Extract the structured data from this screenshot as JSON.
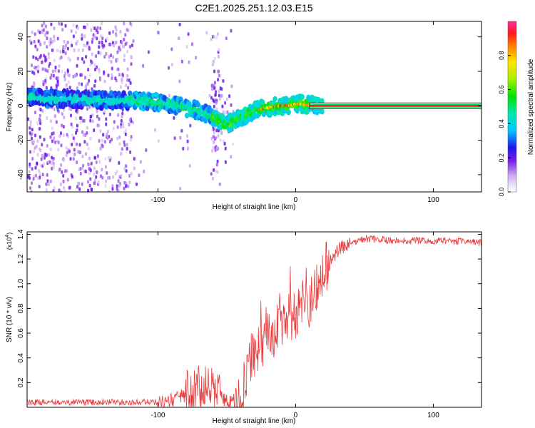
{
  "title": "C2E1.2025.251.12.03.E15",
  "colors": {
    "snr_line": "#e83a3a",
    "ridge_outline": "#2a2a2a",
    "spectrogram_background": "#ffffff"
  },
  "chart_data": [
    {
      "type": "heatmap",
      "name": "spectrogram",
      "xlabel": "Height of straight line (km)",
      "ylabel": "Frequency (Hz)",
      "xlim": [
        -195,
        135
      ],
      "ylim": [
        -50,
        49
      ],
      "xticks": [
        -100,
        0,
        100
      ],
      "xtick_labels": [
        "-100",
        "0",
        "100"
      ],
      "yticks": [
        -40,
        -20,
        0,
        20,
        40
      ],
      "ytick_labels": [
        "-40",
        "-20",
        "0",
        "20",
        "40"
      ],
      "ridge_frequency": {
        "x": [
          -195,
          -180,
          -160,
          -140,
          -120,
          -100,
          -90,
          -80,
          -70,
          -60,
          -55,
          -50,
          -45,
          -40,
          -35,
          -30,
          -25,
          -20,
          -15,
          -10,
          -5,
          0,
          5,
          10,
          20,
          40,
          60,
          80,
          100,
          120,
          135
        ],
        "y": [
          5,
          4,
          4,
          3,
          3,
          2,
          1,
          -1,
          -3,
          -6,
          -9,
          -11,
          -9,
          -7,
          -5,
          -3,
          -2,
          -1,
          -0.5,
          0,
          0,
          1,
          1,
          0.5,
          0,
          0,
          0,
          0,
          0,
          0,
          0
        ]
      },
      "colorbar": {
        "label": "Normalized spectral amplitude",
        "range": [
          0,
          1
        ],
        "ticks": [
          0.0,
          0.2,
          0.4,
          0.6,
          0.8
        ],
        "tick_labels": [
          "0.0",
          "0.2",
          "0.4",
          "0.6",
          "0.8"
        ]
      }
    },
    {
      "type": "line",
      "name": "snr",
      "xlabel": "Height of straight line (km)",
      "ylabel": "SNR (10 * v/v)",
      "scale_label": "(x10",
      "scale_exponent": "4",
      "scale_suffix": ")",
      "xlim": [
        -195,
        135
      ],
      "ylim": [
        0,
        1.42
      ],
      "xticks": [
        -100,
        0,
        100
      ],
      "xtick_labels": [
        "-100",
        "0",
        "100"
      ],
      "yticks": [
        0.2,
        0.4,
        0.6,
        0.8,
        1.0,
        1.2,
        1.4
      ],
      "ytick_labels": [
        "0.2",
        "0.4",
        "0.6",
        "0.8",
        "1.0",
        "1.2",
        "1.4"
      ],
      "series": [
        {
          "name": "SNR",
          "x": [
            -195,
            -170,
            -150,
            -130,
            -110,
            -95,
            -90,
            -85,
            -80,
            -75,
            -70,
            -65,
            -60,
            -55,
            -50,
            -45,
            -42,
            -40,
            -38,
            -35,
            -32,
            -30,
            -28,
            -25,
            -22,
            -20,
            -15,
            -10,
            -5,
            0,
            5,
            10,
            15,
            18,
            20,
            25,
            30,
            35,
            40,
            45,
            50,
            60,
            70,
            80,
            90,
            100,
            110,
            120,
            135
          ],
          "y": [
            0.04,
            0.04,
            0.04,
            0.04,
            0.04,
            0.05,
            0.06,
            0.08,
            0.1,
            0.12,
            0.14,
            0.15,
            0.13,
            0.09,
            0.05,
            0.03,
            0.03,
            0.05,
            0.15,
            0.3,
            0.4,
            0.45,
            0.5,
            0.52,
            0.55,
            0.58,
            0.62,
            0.68,
            0.72,
            0.75,
            0.8,
            0.86,
            0.93,
            1.0,
            1.08,
            1.18,
            1.26,
            1.31,
            1.34,
            1.35,
            1.36,
            1.36,
            1.35,
            1.35,
            1.35,
            1.35,
            1.35,
            1.34,
            1.33
          ]
        }
      ]
    }
  ]
}
